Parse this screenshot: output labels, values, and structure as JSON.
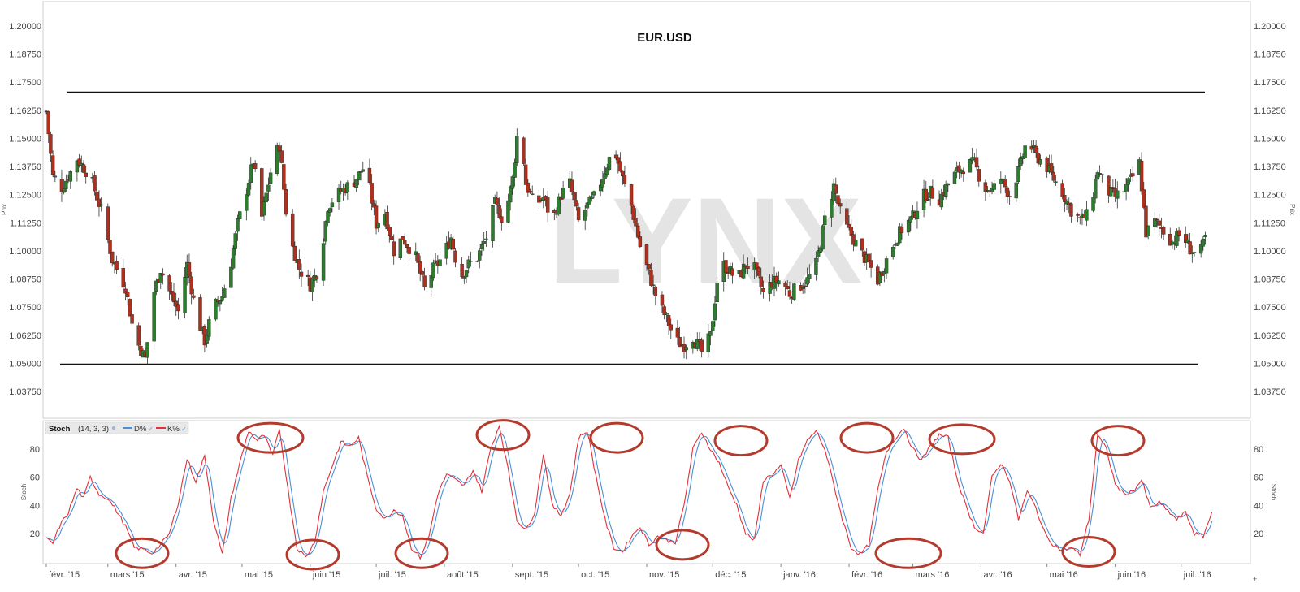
{
  "chart_data": [
    {
      "type": "candlestick",
      "title": "EUR.USD",
      "watermark": "LYNX",
      "ylabel": "Prix",
      "ylim": [
        1.0275,
        1.2125
      ],
      "y_ticks": [
        "1.03750",
        "1.05000",
        "1.06250",
        "1.07500",
        "1.08750",
        "1.10000",
        "1.11250",
        "1.12500",
        "1.13750",
        "1.15000",
        "1.16250",
        "1.17500",
        "1.18750",
        "1.20000"
      ],
      "x_ticks": [
        "févr. '15",
        "mars '15",
        "avr. '15",
        "mai '15",
        "juin '15",
        "juil. '15",
        "août '15",
        "sept. '15",
        "oct. '15",
        "nov. '15",
        "déc. '15",
        "janv. '16",
        "févr. '16",
        "mars '16",
        "avr. '16",
        "mai '16",
        "juin '16",
        "juil. '16"
      ],
      "x_tick_positions": [
        0,
        28,
        59,
        89,
        120,
        150,
        181,
        212,
        242,
        273,
        303,
        334,
        365,
        394,
        425,
        455,
        486,
        516
      ],
      "time_span_days": 546,
      "horizontal_lines": [
        1.1705,
        1.0495
      ],
      "close_anchors": [
        [
          0,
          1.162
        ],
        [
          3,
          1.133
        ],
        [
          7,
          1.128
        ],
        [
          11,
          1.135
        ],
        [
          14,
          1.141
        ],
        [
          20,
          1.133
        ],
        [
          25,
          1.118
        ],
        [
          30,
          1.096
        ],
        [
          36,
          1.084
        ],
        [
          40,
          1.062
        ],
        [
          45,
          1.052
        ],
        [
          49,
          1.082
        ],
        [
          52,
          1.092
        ],
        [
          56,
          1.082
        ],
        [
          60,
          1.073
        ],
        [
          64,
          1.094
        ],
        [
          68,
          1.073
        ],
        [
          72,
          1.06
        ],
        [
          76,
          1.075
        ],
        [
          80,
          1.08
        ],
        [
          84,
          1.095
        ],
        [
          87,
          1.112
        ],
        [
          90,
          1.123
        ],
        [
          94,
          1.14
        ],
        [
          98,
          1.115
        ],
        [
          103,
          1.14
        ],
        [
          106,
          1.147
        ],
        [
          110,
          1.108
        ],
        [
          115,
          1.092
        ],
        [
          120,
          1.085
        ],
        [
          124,
          1.092
        ],
        [
          128,
          1.12
        ],
        [
          132,
          1.125
        ],
        [
          136,
          1.128
        ],
        [
          140,
          1.131
        ],
        [
          145,
          1.138
        ],
        [
          150,
          1.112
        ],
        [
          154,
          1.117
        ],
        [
          158,
          1.1
        ],
        [
          162,
          1.106
        ],
        [
          168,
          1.097
        ],
        [
          172,
          1.083
        ],
        [
          176,
          1.092
        ],
        [
          180,
          1.097
        ],
        [
          184,
          1.106
        ],
        [
          188,
          1.088
        ],
        [
          192,
          1.094
        ],
        [
          196,
          1.097
        ],
        [
          200,
          1.106
        ],
        [
          204,
          1.121
        ],
        [
          208,
          1.113
        ],
        [
          212,
          1.132
        ],
        [
          215,
          1.16
        ],
        [
          218,
          1.13
        ],
        [
          222,
          1.12
        ],
        [
          226,
          1.124
        ],
        [
          230,
          1.113
        ],
        [
          234,
          1.125
        ],
        [
          238,
          1.13
        ],
        [
          242,
          1.113
        ],
        [
          246,
          1.12
        ],
        [
          250,
          1.125
        ],
        [
          254,
          1.136
        ],
        [
          258,
          1.146
        ],
        [
          262,
          1.132
        ],
        [
          266,
          1.12
        ],
        [
          270,
          1.102
        ],
        [
          274,
          1.09
        ],
        [
          278,
          1.077
        ],
        [
          282,
          1.07
        ],
        [
          286,
          1.06
        ],
        [
          290,
          1.058
        ],
        [
          294,
          1.062
        ],
        [
          298,
          1.055
        ],
        [
          302,
          1.062
        ],
        [
          306,
          1.095
        ],
        [
          310,
          1.092
        ],
        [
          314,
          1.087
        ],
        [
          318,
          1.094
        ],
        [
          322,
          1.092
        ],
        [
          326,
          1.081
        ],
        [
          330,
          1.086
        ],
        [
          334,
          1.087
        ],
        [
          338,
          1.081
        ],
        [
          342,
          1.084
        ],
        [
          346,
          1.087
        ],
        [
          350,
          1.094
        ],
        [
          354,
          1.114
        ],
        [
          358,
          1.129
        ],
        [
          362,
          1.113
        ],
        [
          366,
          1.107
        ],
        [
          370,
          1.1
        ],
        [
          374,
          1.094
        ],
        [
          378,
          1.087
        ],
        [
          382,
          1.096
        ],
        [
          386,
          1.105
        ],
        [
          390,
          1.111
        ],
        [
          394,
          1.115
        ],
        [
          398,
          1.124
        ],
        [
          402,
          1.126
        ],
        [
          406,
          1.123
        ],
        [
          410,
          1.13
        ],
        [
          414,
          1.135
        ],
        [
          418,
          1.138
        ],
        [
          422,
          1.139
        ],
        [
          426,
          1.128
        ],
        [
          430,
          1.127
        ],
        [
          434,
          1.132
        ],
        [
          438,
          1.125
        ],
        [
          442,
          1.135
        ],
        [
          446,
          1.15
        ],
        [
          450,
          1.142
        ],
        [
          454,
          1.139
        ],
        [
          458,
          1.132
        ],
        [
          462,
          1.126
        ],
        [
          466,
          1.118
        ],
        [
          470,
          1.114
        ],
        [
          474,
          1.116
        ],
        [
          478,
          1.136
        ],
        [
          482,
          1.127
        ],
        [
          486,
          1.124
        ],
        [
          490,
          1.127
        ],
        [
          494,
          1.133
        ],
        [
          497,
          1.139
        ],
        [
          500,
          1.108
        ],
        [
          504,
          1.113
        ],
        [
          508,
          1.109
        ],
        [
          512,
          1.104
        ],
        [
          516,
          1.108
        ],
        [
          520,
          1.101
        ],
        [
          524,
          1.097
        ],
        [
          527,
          1.106
        ]
      ]
    },
    {
      "type": "line",
      "title": "Stoch",
      "params": "(14, 3, 3)",
      "ylabel": "Stoch",
      "ylim": [
        0,
        100
      ],
      "y_ticks": [
        "20",
        "40",
        "60",
        "80"
      ],
      "legend_position": "top-left",
      "series": [
        {
          "name": "D%",
          "color": "#4a90d9"
        },
        {
          "name": "K%",
          "color": "#e0303a"
        }
      ],
      "k_anchors": [
        [
          0,
          16
        ],
        [
          3,
          13
        ],
        [
          6,
          25
        ],
        [
          10,
          35
        ],
        [
          14,
          52
        ],
        [
          17,
          45
        ],
        [
          20,
          60
        ],
        [
          24,
          48
        ],
        [
          28,
          45
        ],
        [
          32,
          36
        ],
        [
          36,
          25
        ],
        [
          40,
          10
        ],
        [
          44,
          9
        ],
        [
          48,
          6
        ],
        [
          52,
          12
        ],
        [
          56,
          20
        ],
        [
          60,
          42
        ],
        [
          64,
          73
        ],
        [
          68,
          57
        ],
        [
          72,
          75
        ],
        [
          76,
          30
        ],
        [
          80,
          5
        ],
        [
          84,
          45
        ],
        [
          88,
          70
        ],
        [
          92,
          93
        ],
        [
          96,
          86
        ],
        [
          99,
          90
        ],
        [
          103,
          75
        ],
        [
          106,
          95
        ],
        [
          110,
          50
        ],
        [
          114,
          10
        ],
        [
          118,
          3
        ],
        [
          122,
          14
        ],
        [
          126,
          50
        ],
        [
          130,
          68
        ],
        [
          134,
          85
        ],
        [
          138,
          82
        ],
        [
          142,
          88
        ],
        [
          146,
          60
        ],
        [
          150,
          38
        ],
        [
          154,
          30
        ],
        [
          158,
          37
        ],
        [
          162,
          33
        ],
        [
          166,
          10
        ],
        [
          170,
          3
        ],
        [
          174,
          18
        ],
        [
          178,
          48
        ],
        [
          182,
          62
        ],
        [
          186,
          58
        ],
        [
          190,
          54
        ],
        [
          194,
          65
        ],
        [
          198,
          50
        ],
        [
          202,
          80
        ],
        [
          206,
          97
        ],
        [
          210,
          65
        ],
        [
          214,
          30
        ],
        [
          218,
          22
        ],
        [
          222,
          35
        ],
        [
          226,
          77
        ],
        [
          230,
          40
        ],
        [
          234,
          33
        ],
        [
          238,
          48
        ],
        [
          242,
          88
        ],
        [
          246,
          93
        ],
        [
          250,
          60
        ],
        [
          254,
          30
        ],
        [
          258,
          10
        ],
        [
          262,
          7
        ],
        [
          266,
          18
        ],
        [
          270,
          25
        ],
        [
          274,
          12
        ],
        [
          278,
          18
        ],
        [
          282,
          15
        ],
        [
          286,
          14
        ],
        [
          290,
          40
        ],
        [
          294,
          80
        ],
        [
          298,
          92
        ],
        [
          302,
          80
        ],
        [
          306,
          70
        ],
        [
          310,
          53
        ],
        [
          314,
          40
        ],
        [
          318,
          20
        ],
        [
          322,
          15
        ],
        [
          326,
          58
        ],
        [
          330,
          62
        ],
        [
          334,
          68
        ],
        [
          338,
          45
        ],
        [
          342,
          72
        ],
        [
          346,
          86
        ],
        [
          350,
          93
        ],
        [
          354,
          80
        ],
        [
          358,
          55
        ],
        [
          362,
          30
        ],
        [
          366,
          10
        ],
        [
          370,
          5
        ],
        [
          374,
          12
        ],
        [
          378,
          50
        ],
        [
          382,
          78
        ],
        [
          386,
          88
        ],
        [
          390,
          95
        ],
        [
          394,
          80
        ],
        [
          398,
          72
        ],
        [
          402,
          82
        ],
        [
          406,
          90
        ],
        [
          410,
          88
        ],
        [
          414,
          60
        ],
        [
          418,
          40
        ],
        [
          422,
          25
        ],
        [
          426,
          20
        ],
        [
          430,
          60
        ],
        [
          434,
          70
        ],
        [
          438,
          58
        ],
        [
          442,
          30
        ],
        [
          446,
          50
        ],
        [
          450,
          38
        ],
        [
          454,
          20
        ],
        [
          458,
          12
        ],
        [
          462,
          8
        ],
        [
          466,
          10
        ],
        [
          470,
          5
        ],
        [
          474,
          30
        ],
        [
          478,
          90
        ],
        [
          482,
          80
        ],
        [
          486,
          55
        ],
        [
          490,
          48
        ],
        [
          494,
          50
        ],
        [
          498,
          58
        ],
        [
          502,
          38
        ],
        [
          506,
          42
        ],
        [
          510,
          36
        ],
        [
          514,
          30
        ],
        [
          518,
          35
        ],
        [
          522,
          20
        ],
        [
          526,
          18
        ],
        [
          530,
          35
        ]
      ],
      "highlight_circles": [
        {
          "cx": 175,
          "y": 6
        },
        {
          "cx": 333,
          "y": 88
        },
        {
          "cx": 385,
          "y": 5
        },
        {
          "cx": 519,
          "y": 6
        },
        {
          "cx": 619,
          "y": 90
        },
        {
          "cx": 759,
          "y": 88
        },
        {
          "cx": 840,
          "y": 12
        },
        {
          "cx": 912,
          "y": 86
        },
        {
          "cx": 1067,
          "y": 88
        },
        {
          "cx": 1118,
          "y": 6
        },
        {
          "cx": 1184,
          "y": 87
        },
        {
          "cx": 1340,
          "y": 7
        },
        {
          "cx": 1376,
          "y": 86
        }
      ]
    }
  ]
}
